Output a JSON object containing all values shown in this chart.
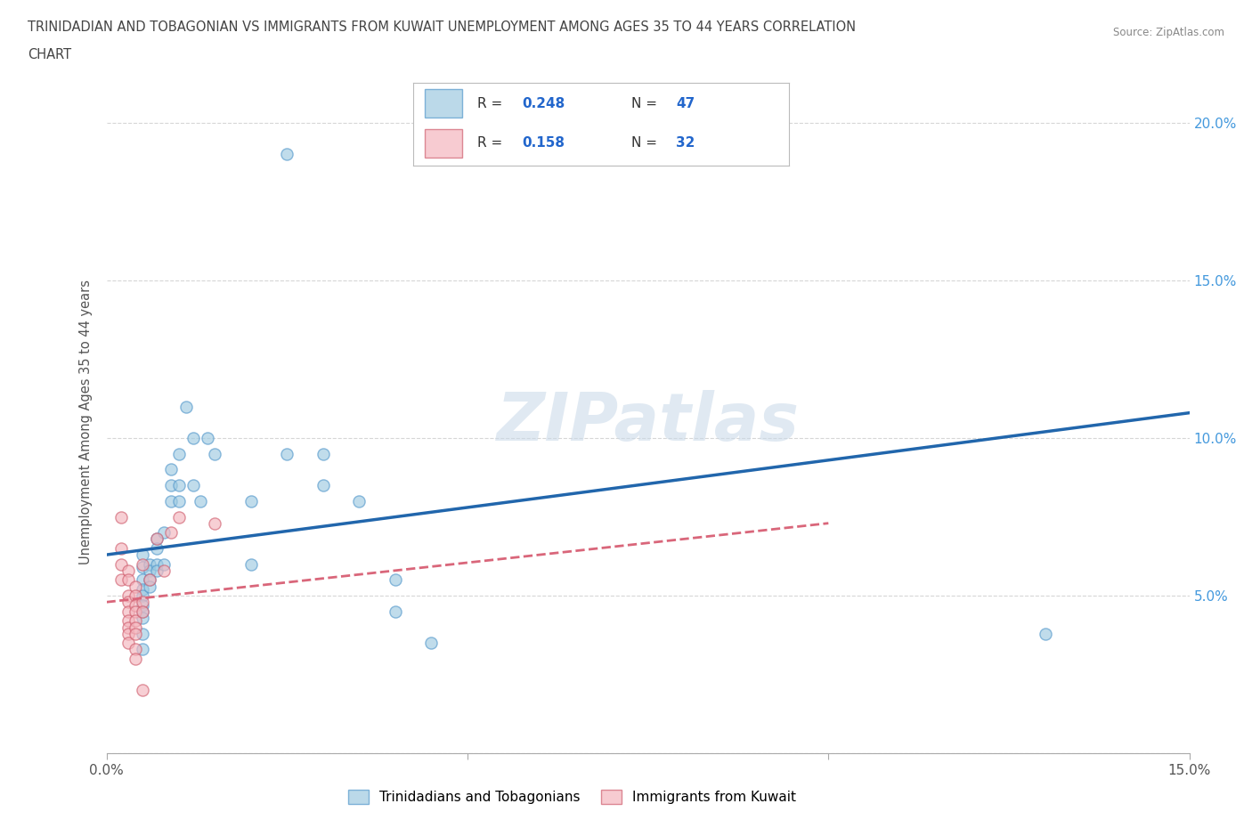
{
  "title_line1": "TRINIDADIAN AND TOBAGONIAN VS IMMIGRANTS FROM KUWAIT UNEMPLOYMENT AMONG AGES 35 TO 44 YEARS CORRELATION",
  "title_line2": "CHART",
  "source_text": "Source: ZipAtlas.com",
  "ylabel": "Unemployment Among Ages 35 to 44 years",
  "xlim": [
    0.0,
    0.15
  ],
  "ylim": [
    0.0,
    0.21
  ],
  "watermark": "ZIPatlas",
  "blue_color": "#9ecae1",
  "pink_color": "#f4b6be",
  "blue_edge": "#5599cc",
  "pink_edge": "#d06070",
  "blue_line_color": "#2166ac",
  "pink_line_color": "#d9667a",
  "blue_scatter": [
    [
      0.005,
      0.063
    ],
    [
      0.005,
      0.059
    ],
    [
      0.005,
      0.055
    ],
    [
      0.005,
      0.052
    ],
    [
      0.005,
      0.05
    ],
    [
      0.005,
      0.047
    ],
    [
      0.005,
      0.045
    ],
    [
      0.005,
      0.043
    ],
    [
      0.005,
      0.038
    ],
    [
      0.005,
      0.033
    ],
    [
      0.006,
      0.06
    ],
    [
      0.006,
      0.058
    ],
    [
      0.006,
      0.055
    ],
    [
      0.006,
      0.053
    ],
    [
      0.007,
      0.068
    ],
    [
      0.007,
      0.065
    ],
    [
      0.007,
      0.06
    ],
    [
      0.007,
      0.058
    ],
    [
      0.008,
      0.07
    ],
    [
      0.008,
      0.06
    ],
    [
      0.009,
      0.09
    ],
    [
      0.009,
      0.085
    ],
    [
      0.009,
      0.08
    ],
    [
      0.01,
      0.095
    ],
    [
      0.01,
      0.085
    ],
    [
      0.01,
      0.08
    ],
    [
      0.011,
      0.11
    ],
    [
      0.012,
      0.1
    ],
    [
      0.012,
      0.085
    ],
    [
      0.013,
      0.08
    ],
    [
      0.014,
      0.1
    ],
    [
      0.015,
      0.095
    ],
    [
      0.02,
      0.08
    ],
    [
      0.02,
      0.06
    ],
    [
      0.025,
      0.19
    ],
    [
      0.025,
      0.095
    ],
    [
      0.03,
      0.095
    ],
    [
      0.03,
      0.085
    ],
    [
      0.035,
      0.08
    ],
    [
      0.04,
      0.055
    ],
    [
      0.04,
      0.045
    ],
    [
      0.045,
      0.035
    ],
    [
      0.13,
      0.038
    ]
  ],
  "pink_scatter": [
    [
      0.002,
      0.075
    ],
    [
      0.002,
      0.065
    ],
    [
      0.002,
      0.06
    ],
    [
      0.002,
      0.055
    ],
    [
      0.003,
      0.058
    ],
    [
      0.003,
      0.055
    ],
    [
      0.003,
      0.05
    ],
    [
      0.003,
      0.048
    ],
    [
      0.003,
      0.045
    ],
    [
      0.003,
      0.042
    ],
    [
      0.003,
      0.04
    ],
    [
      0.003,
      0.038
    ],
    [
      0.003,
      0.035
    ],
    [
      0.004,
      0.053
    ],
    [
      0.004,
      0.05
    ],
    [
      0.004,
      0.047
    ],
    [
      0.004,
      0.045
    ],
    [
      0.004,
      0.042
    ],
    [
      0.004,
      0.04
    ],
    [
      0.004,
      0.038
    ],
    [
      0.004,
      0.033
    ],
    [
      0.004,
      0.03
    ],
    [
      0.005,
      0.06
    ],
    [
      0.005,
      0.048
    ],
    [
      0.005,
      0.045
    ],
    [
      0.005,
      0.02
    ],
    [
      0.006,
      0.055
    ],
    [
      0.007,
      0.068
    ],
    [
      0.008,
      0.058
    ],
    [
      0.009,
      0.07
    ],
    [
      0.01,
      0.075
    ],
    [
      0.015,
      0.073
    ]
  ],
  "blue_trendline_x": [
    0.0,
    0.15
  ],
  "blue_trendline_y": [
    0.063,
    0.108
  ],
  "pink_trendline_x": [
    0.0,
    0.1
  ],
  "pink_trendline_y": [
    0.048,
    0.073
  ],
  "grid_color": "#cccccc",
  "tick_color": "#4499dd",
  "label_color": "#555555",
  "background_color": "#ffffff"
}
